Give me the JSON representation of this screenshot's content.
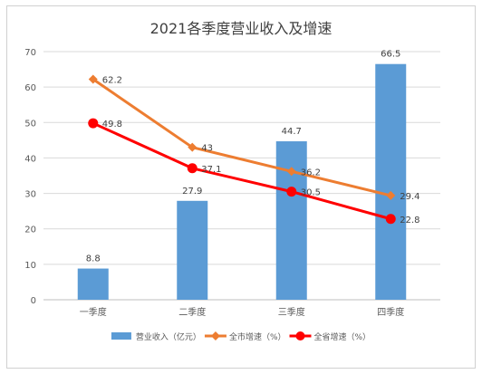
{
  "chart_data": {
    "type": "bar",
    "title": "2021各季度营业收入及增速",
    "categories": [
      "一季度",
      "二季度",
      "三季度",
      "四季度"
    ],
    "ylim": [
      0,
      70
    ],
    "yticks": [
      0,
      10,
      20,
      30,
      40,
      50,
      60,
      70
    ],
    "grid": true,
    "legend_position": "bottom",
    "series": [
      {
        "name": "营业收入（亿元）",
        "kind": "bar",
        "color": "#5b9bd5",
        "values": [
          8.8,
          27.9,
          44.7,
          66.5
        ],
        "labels": [
          "8.8",
          "27.9",
          "44.7",
          "66.5"
        ]
      },
      {
        "name": "全市增速（%）",
        "kind": "line",
        "marker": "diamond",
        "color": "#ed7d31",
        "values": [
          62.2,
          43,
          36.2,
          29.4
        ],
        "labels": [
          "62.2",
          "43",
          "36.2",
          "29.4"
        ]
      },
      {
        "name": "全省增速（%）",
        "kind": "line",
        "marker": "circle",
        "color": "#ff0000",
        "values": [
          49.8,
          37.1,
          30.5,
          22.8
        ],
        "labels": [
          "49.8",
          "37.1",
          "30.5",
          "22.8"
        ]
      }
    ]
  }
}
